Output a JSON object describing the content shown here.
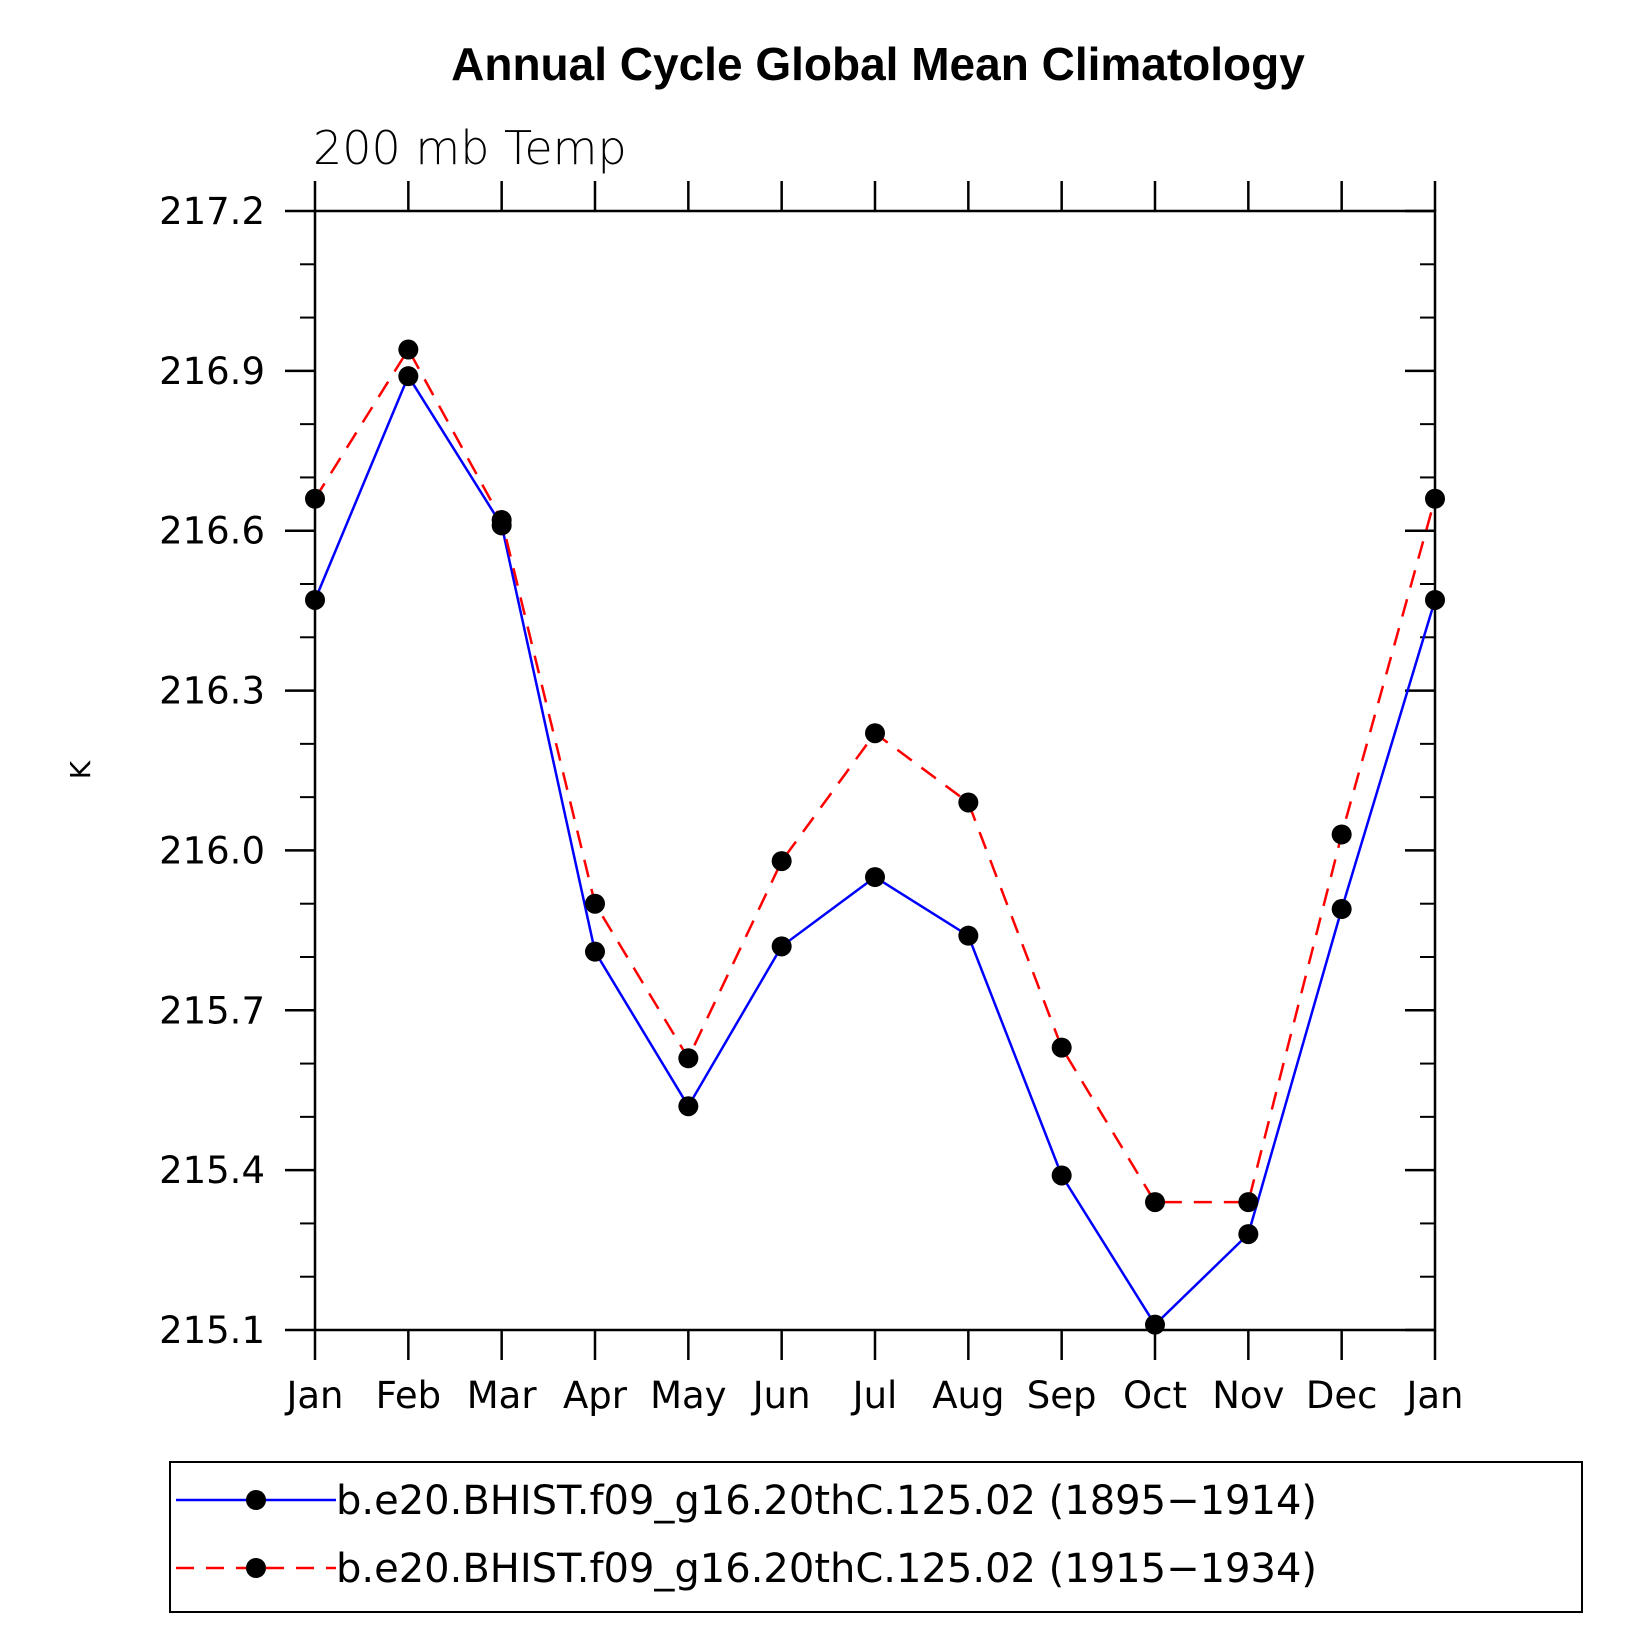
{
  "chart_data": {
    "type": "line",
    "title": "Annual Cycle Global Mean Climatology",
    "subtitle": "200 mb Temp",
    "xlabel": "",
    "ylabel": "K",
    "categories": [
      "Jan",
      "Feb",
      "Mar",
      "Apr",
      "May",
      "Jun",
      "Jul",
      "Aug",
      "Sep",
      "Oct",
      "Nov",
      "Dec",
      "Jan"
    ],
    "yticks": [
      "217.2",
      "216.9",
      "216.6",
      "216.3",
      "216.0",
      "215.7",
      "215.4",
      "215.1"
    ],
    "ylim": [
      215.1,
      217.2
    ],
    "grid": false,
    "legend_position": "bottom",
    "series": [
      {
        "name": "b.e20.BHIST.f09_g16.20thC.125.02 (1895−1914)",
        "color": "#0000ff",
        "dash": "solid",
        "marker_color": "#000000",
        "values": [
          216.47,
          216.89,
          216.61,
          215.81,
          215.52,
          215.82,
          215.95,
          215.84,
          215.39,
          215.11,
          215.28,
          215.89,
          216.47
        ]
      },
      {
        "name": "b.e20.BHIST.f09_g16.20thC.125.02 (1915−1934)",
        "color": "#ff0000",
        "dash": "dashed",
        "marker_color": "#000000",
        "values": [
          216.66,
          216.94,
          216.62,
          215.9,
          215.61,
          215.98,
          216.22,
          216.09,
          215.63,
          215.34,
          215.34,
          216.03,
          216.66
        ]
      }
    ]
  }
}
